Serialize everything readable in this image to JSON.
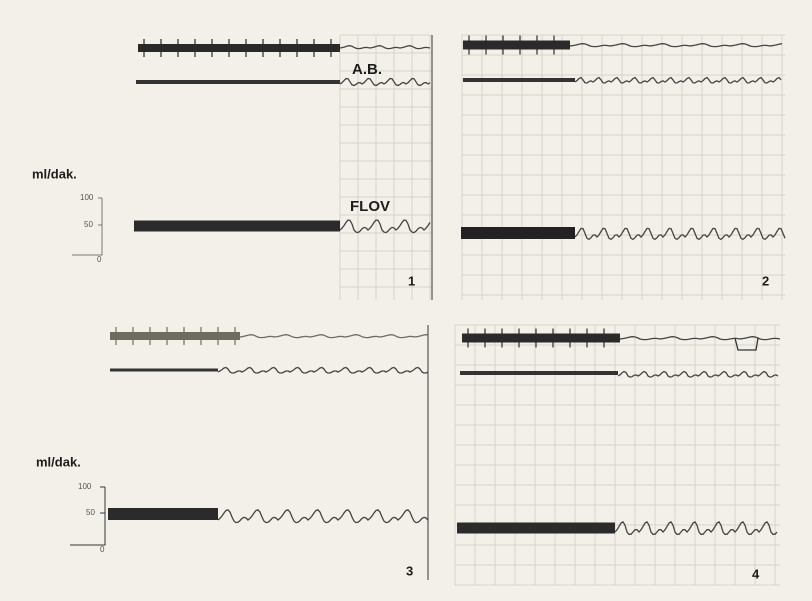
{
  "panels": [
    {
      "label": "1",
      "annotations": [
        "A.B.",
        "FLOV"
      ],
      "axis": {
        "label": "ml/dak.",
        "ticks": [
          "100",
          "50",
          "0"
        ]
      }
    },
    {
      "label": "2"
    },
    {
      "label": "3",
      "axis": {
        "label": "ml/dak.",
        "ticks": [
          "100",
          "50",
          "0"
        ]
      }
    },
    {
      "label": "4"
    }
  ]
}
